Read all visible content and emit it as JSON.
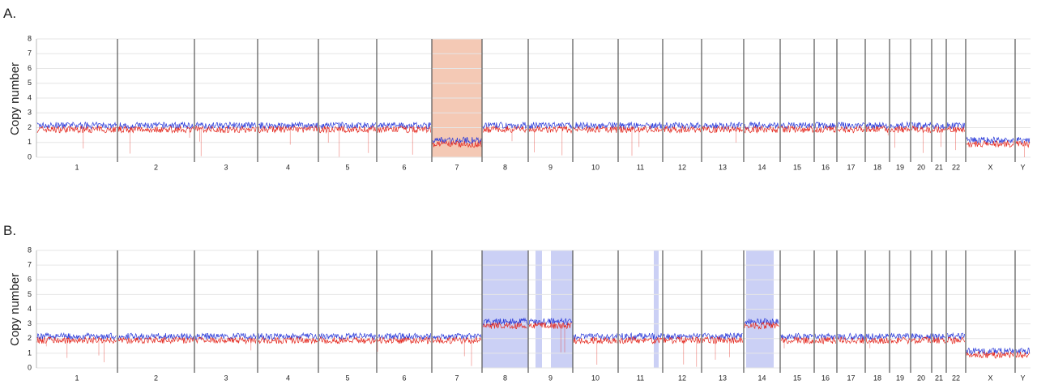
{
  "chart_data": [
    {
      "type": "copy-number",
      "title": "A.",
      "ylabel": "Copy number",
      "categories": [
        "1",
        "2",
        "3",
        "4",
        "5",
        "6",
        "7",
        "8",
        "9",
        "10",
        "11",
        "12",
        "13",
        "14",
        "15",
        "16",
        "17",
        "18",
        "19",
        "20",
        "21",
        "22",
        "X",
        "Y"
      ],
      "values": [
        2,
        2,
        2,
        2,
        2,
        2,
        1,
        2,
        2,
        2,
        2,
        2,
        2,
        2,
        2,
        2,
        2,
        2,
        2,
        2,
        2,
        2,
        1,
        1
      ],
      "colors": [
        "#2636d8",
        "#e4261c"
      ],
      "highlight_color": "#f0b79c",
      "ylim": [
        0,
        8
      ],
      "yticks": [
        0,
        1,
        2,
        3,
        4,
        5,
        6,
        7,
        8
      ],
      "grid": true
    },
    {
      "type": "copy-number",
      "title": "B.",
      "ylabel": "Copy number",
      "categories": [
        "1",
        "2",
        "3",
        "4",
        "5",
        "6",
        "7",
        "8",
        "9",
        "10",
        "11",
        "12",
        "13",
        "14",
        "15",
        "16",
        "17",
        "18",
        "19",
        "20",
        "21",
        "22",
        "X",
        "Y"
      ],
      "values": [
        2,
        2,
        2,
        2,
        2,
        2,
        2,
        3,
        3,
        2,
        2,
        2,
        2,
        3,
        2,
        2,
        2,
        2,
        2,
        2,
        2,
        2,
        1,
        1
      ],
      "colors": [
        "#2636d8",
        "#e4261c"
      ],
      "highlight_color": "#b9c0f2",
      "ylim": [
        0,
        8
      ],
      "yticks": [
        0,
        1,
        2,
        3,
        4,
        5,
        6,
        7,
        8
      ],
      "grid": true
    }
  ]
}
